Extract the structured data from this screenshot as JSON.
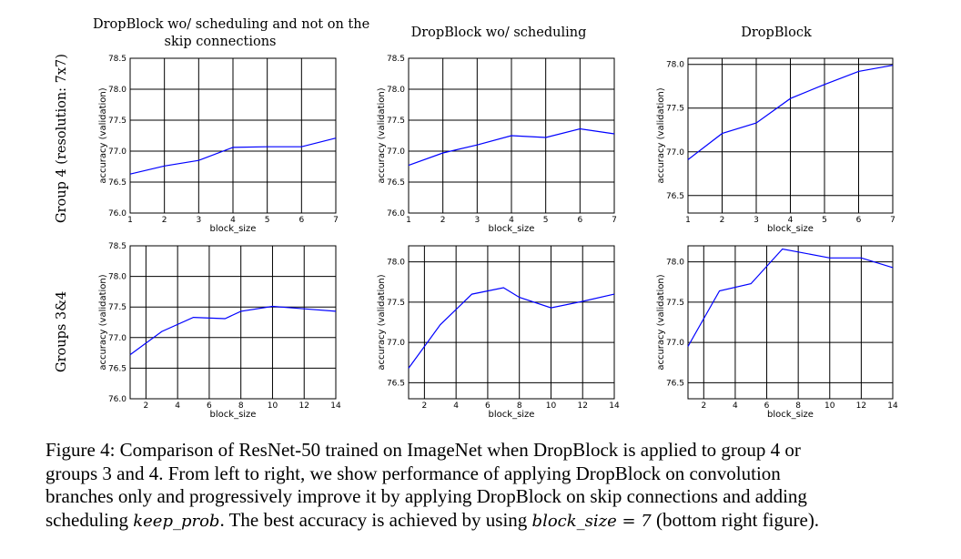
{
  "column_titles": [
    [
      "DropBlock wo/ scheduling and not on the",
      "skip connections"
    ],
    [
      "DropBlock wo/ scheduling"
    ],
    [
      "DropBlock"
    ]
  ],
  "row_labels": [
    "Group 4 (resolution: 7x7)",
    "Groups 3&4"
  ],
  "caption": {
    "line1": "Figure 4: Comparison of ResNet-50 trained on ImageNet when DropBlock is applied to group 4 or",
    "line2": "groups 3 and 4.  From left to right, we show performance of applying DropBlock on convolution",
    "line3": "branches only and progressively improve it by applying DropBlock on skip connections and adding",
    "line4_prefix": "scheduling ",
    "line4_math1": "keep_prob",
    "line4_mid": ". The best accuracy is achieved by using ",
    "line4_math2": "block_size = 7",
    "line4_suffix": " (bottom right figure)."
  },
  "colors": {
    "line": "#0000ff",
    "grid": "#000000"
  },
  "chart_data": [
    {
      "type": "line",
      "row": 0,
      "col": 0,
      "xlabel": "block_size",
      "ylabel": "accuracy (validation)",
      "xlim": [
        1,
        7
      ],
      "ylim": [
        76.0,
        78.5
      ],
      "xticks": [
        1,
        2,
        3,
        4,
        5,
        6,
        7
      ],
      "yticks": [
        76.0,
        76.5,
        77.0,
        77.5,
        78.0,
        78.5
      ],
      "x": [
        1,
        2,
        3,
        4,
        5,
        6,
        7
      ],
      "y": [
        76.63,
        76.76,
        76.85,
        77.06,
        77.07,
        77.07,
        77.21
      ]
    },
    {
      "type": "line",
      "row": 0,
      "col": 1,
      "xlabel": "block_size",
      "ylabel": "accuracy (validation)",
      "xlim": [
        1,
        7
      ],
      "ylim": [
        76.0,
        78.5
      ],
      "xticks": [
        1,
        2,
        3,
        4,
        5,
        6,
        7
      ],
      "yticks": [
        76.0,
        76.5,
        77.0,
        77.5,
        78.0,
        78.5
      ],
      "x": [
        1,
        2,
        3,
        4,
        5,
        6,
        7
      ],
      "y": [
        76.77,
        76.97,
        77.1,
        77.25,
        77.22,
        77.36,
        77.28
      ]
    },
    {
      "type": "line",
      "row": 0,
      "col": 2,
      "xlabel": "block_size",
      "ylabel": "accuracy (validation)",
      "xlim": [
        1,
        7
      ],
      "ylim": [
        76.3,
        78.07
      ],
      "xticks": [
        1,
        2,
        3,
        4,
        5,
        6,
        7
      ],
      "yticks": [
        76.5,
        77.0,
        77.5,
        78.0
      ],
      "x": [
        1,
        2,
        3,
        4,
        5,
        6,
        7
      ],
      "y": [
        76.91,
        77.21,
        77.33,
        77.61,
        77.77,
        77.92,
        77.99
      ]
    },
    {
      "type": "line",
      "row": 1,
      "col": 0,
      "xlabel": "block_size",
      "ylabel": "accuracy (validation)",
      "xlim": [
        1,
        14
      ],
      "ylim": [
        76.0,
        78.5
      ],
      "xticks": [
        2,
        4,
        6,
        8,
        10,
        12,
        14
      ],
      "yticks": [
        76.0,
        76.5,
        77.0,
        77.5,
        78.0,
        78.5
      ],
      "x": [
        1,
        3,
        5,
        7,
        8,
        10,
        12,
        14
      ],
      "y": [
        76.72,
        77.1,
        77.33,
        77.31,
        77.43,
        77.51,
        77.47,
        77.43
      ]
    },
    {
      "type": "line",
      "row": 1,
      "col": 1,
      "xlabel": "block_size",
      "ylabel": "accuracy (validation)",
      "xlim": [
        1,
        14
      ],
      "ylim": [
        76.3,
        78.2
      ],
      "xticks": [
        2,
        4,
        6,
        8,
        10,
        12,
        14
      ],
      "yticks": [
        76.5,
        77.0,
        77.5,
        78.0
      ],
      "x": [
        1,
        3,
        5,
        7,
        8,
        10,
        12,
        14
      ],
      "y": [
        76.68,
        77.22,
        77.6,
        77.68,
        77.56,
        77.43,
        77.51,
        77.6
      ]
    },
    {
      "type": "line",
      "row": 1,
      "col": 2,
      "xlabel": "block_size",
      "ylabel": "accuracy (validation)",
      "xlim": [
        1,
        14
      ],
      "ylim": [
        76.3,
        78.2
      ],
      "xticks": [
        2,
        4,
        6,
        8,
        10,
        12,
        14
      ],
      "yticks": [
        76.5,
        77.0,
        77.5,
        78.0
      ],
      "x": [
        1,
        3,
        5,
        7,
        10,
        12,
        14
      ],
      "y": [
        76.95,
        77.64,
        77.73,
        78.16,
        78.05,
        78.05,
        77.93
      ]
    }
  ]
}
